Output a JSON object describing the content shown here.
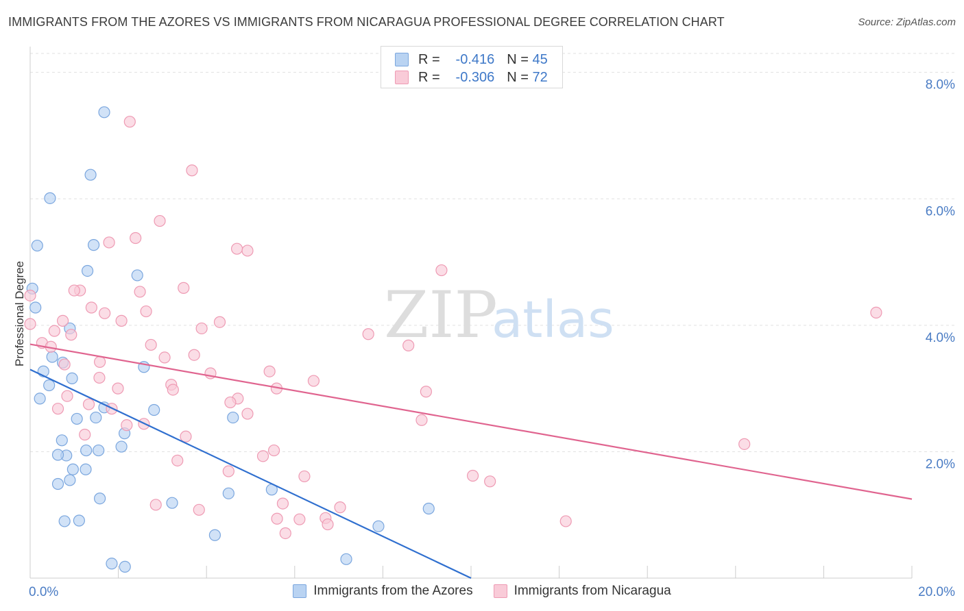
{
  "title": "IMMIGRANTS FROM THE AZORES VS IMMIGRANTS FROM NICARAGUA PROFESSIONAL DEGREE CORRELATION CHART",
  "source": "Source: ZipAtlas.com",
  "watermark": {
    "zip": "ZIP",
    "atlas": "atlas"
  },
  "legend_top": [
    {
      "r_label": "R =",
      "r_value": "-0.416",
      "n_label": "N =",
      "n_value": "45"
    },
    {
      "r_label": "R =",
      "r_value": "-0.306",
      "n_label": "N =",
      "n_value": "72"
    }
  ],
  "colors": {
    "blue_fill": "#b9d3f2",
    "blue_stroke": "#7aa6de",
    "blue_line": "#2f6fcf",
    "pink_fill": "#f9cbd8",
    "pink_stroke": "#ee9ab3",
    "pink_line": "#e0648f",
    "grid": "#e0e0e0",
    "axis_text": "#4a7cc4"
  },
  "chart_data": {
    "type": "scatter",
    "title": "IMMIGRANTS FROM THE AZORES VS IMMIGRANTS FROM NICARAGUA PROFESSIONAL DEGREE CORRELATION CHART",
    "xlabel": "",
    "ylabel": "Professional Degree",
    "xlim": [
      0,
      20
    ],
    "ylim": [
      0,
      8.3
    ],
    "x_tick_labels": [
      "0.0%",
      "20.0%"
    ],
    "y_ticks": [
      2,
      4,
      6,
      8
    ],
    "y_tick_labels": [
      "2.0%",
      "4.0%",
      "6.0%",
      "8.0%"
    ],
    "grid": true,
    "legend_position": "bottom",
    "series": [
      {
        "name": "Immigrants from the Azores",
        "color": "#7aa6de",
        "trend": {
          "x": [
            0.0,
            10.0
          ],
          "y": [
            3.3,
            0.0
          ]
        },
        "points": [
          [
            1.68,
            7.37
          ],
          [
            1.37,
            6.38
          ],
          [
            0.45,
            6.01
          ],
          [
            0.16,
            5.26
          ],
          [
            1.44,
            5.27
          ],
          [
            1.3,
            4.86
          ],
          [
            2.43,
            4.79
          ],
          [
            0.05,
            4.58
          ],
          [
            0.12,
            4.28
          ],
          [
            0.9,
            3.95
          ],
          [
            0.74,
            3.41
          ],
          [
            0.3,
            3.27
          ],
          [
            0.95,
            3.16
          ],
          [
            0.43,
            3.05
          ],
          [
            2.58,
            3.34
          ],
          [
            0.22,
            2.84
          ],
          [
            1.68,
            2.7
          ],
          [
            2.81,
            2.66
          ],
          [
            1.49,
            2.54
          ],
          [
            1.06,
            2.52
          ],
          [
            2.14,
            2.29
          ],
          [
            0.72,
            2.18
          ],
          [
            1.27,
            2.02
          ],
          [
            1.55,
            2.02
          ],
          [
            2.07,
            2.08
          ],
          [
            0.82,
            1.94
          ],
          [
            0.63,
            1.95
          ],
          [
            0.97,
            1.72
          ],
          [
            1.26,
            1.72
          ],
          [
            0.9,
            1.55
          ],
          [
            0.63,
            1.49
          ],
          [
            1.58,
            1.26
          ],
          [
            3.22,
            1.19
          ],
          [
            4.5,
            1.34
          ],
          [
            5.48,
            1.4
          ],
          [
            9.04,
            1.1
          ],
          [
            0.78,
            0.9
          ],
          [
            1.11,
            0.91
          ],
          [
            7.9,
            0.82
          ],
          [
            4.19,
            0.68
          ],
          [
            1.85,
            0.23
          ],
          [
            2.15,
            0.18
          ],
          [
            7.17,
            0.3
          ],
          [
            0.5,
            3.5
          ],
          [
            4.6,
            2.54
          ]
        ]
      },
      {
        "name": "Immigrants from Nicaragua",
        "color": "#ee9ab3",
        "trend": {
          "x": [
            0.0,
            20.0
          ],
          "y": [
            3.7,
            1.25
          ]
        },
        "points": [
          [
            2.26,
            7.22
          ],
          [
            3.67,
            6.45
          ],
          [
            2.94,
            5.65
          ],
          [
            2.39,
            5.38
          ],
          [
            1.79,
            5.31
          ],
          [
            4.69,
            5.21
          ],
          [
            4.93,
            5.18
          ],
          [
            9.33,
            4.87
          ],
          [
            0.0,
            4.47
          ],
          [
            0.0,
            4.02
          ],
          [
            1.13,
            4.55
          ],
          [
            1.0,
            4.55
          ],
          [
            2.49,
            4.53
          ],
          [
            3.48,
            4.59
          ],
          [
            1.39,
            4.28
          ],
          [
            1.69,
            4.19
          ],
          [
            2.63,
            4.22
          ],
          [
            0.74,
            4.07
          ],
          [
            2.07,
            4.07
          ],
          [
            4.3,
            4.05
          ],
          [
            3.89,
            3.95
          ],
          [
            0.55,
            3.91
          ],
          [
            0.93,
            3.85
          ],
          [
            7.67,
            3.86
          ],
          [
            19.19,
            4.2
          ],
          [
            0.27,
            3.72
          ],
          [
            0.47,
            3.66
          ],
          [
            2.74,
            3.69
          ],
          [
            8.58,
            3.68
          ],
          [
            3.72,
            3.53
          ],
          [
            3.05,
            3.49
          ],
          [
            1.58,
            3.42
          ],
          [
            0.78,
            3.38
          ],
          [
            5.43,
            3.27
          ],
          [
            4.09,
            3.24
          ],
          [
            1.57,
            3.17
          ],
          [
            6.43,
            3.12
          ],
          [
            3.2,
            3.06
          ],
          [
            3.24,
            2.98
          ],
          [
            5.59,
            3.0
          ],
          [
            1.99,
            3.0
          ],
          [
            8.98,
            2.95
          ],
          [
            0.84,
            2.88
          ],
          [
            4.71,
            2.84
          ],
          [
            1.33,
            2.75
          ],
          [
            4.54,
            2.78
          ],
          [
            1.85,
            2.68
          ],
          [
            4.93,
            2.6
          ],
          [
            0.63,
            2.68
          ],
          [
            8.88,
            2.5
          ],
          [
            2.19,
            2.42
          ],
          [
            2.58,
            2.44
          ],
          [
            1.24,
            2.27
          ],
          [
            3.53,
            2.24
          ],
          [
            5.53,
            2.02
          ],
          [
            5.28,
            1.93
          ],
          [
            3.34,
            1.86
          ],
          [
            16.2,
            2.12
          ],
          [
            4.5,
            1.69
          ],
          [
            6.22,
            1.61
          ],
          [
            10.04,
            1.62
          ],
          [
            10.43,
            1.53
          ],
          [
            2.85,
            1.16
          ],
          [
            5.73,
            1.18
          ],
          [
            3.83,
            1.08
          ],
          [
            7.03,
            1.12
          ],
          [
            5.6,
            0.94
          ],
          [
            6.11,
            0.93
          ],
          [
            6.7,
            0.95
          ],
          [
            6.75,
            0.85
          ],
          [
            12.15,
            0.9
          ],
          [
            5.79,
            0.71
          ]
        ]
      }
    ]
  }
}
